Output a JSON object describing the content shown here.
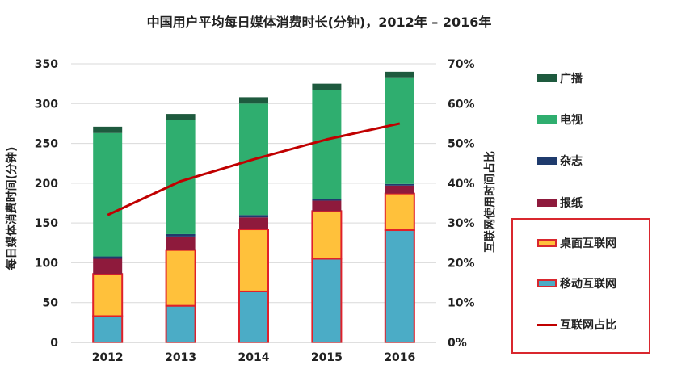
{
  "chart_data": {
    "type": "bar",
    "title": "中国用户平均每日媒体消费时长(分钟)，2012年  –  2016年",
    "ylabel": "每日媒体消费时间(分钟)",
    "y2label": "互联网使用时间占比",
    "categories": [
      "2012",
      "2013",
      "2014",
      "2015",
      "2016"
    ],
    "ylim": [
      0,
      350
    ],
    "yticks": [
      "0",
      "50",
      "100",
      "150",
      "200",
      "250",
      "300",
      "350"
    ],
    "y2lim": [
      0,
      70
    ],
    "y2ticks": [
      "0%",
      "10%",
      "20%",
      "30%",
      "40%",
      "50%",
      "60%",
      "70%"
    ],
    "stacked": true,
    "series": [
      {
        "name": "移动互联网",
        "color": "#4bacc6",
        "values": [
          33,
          46,
          64,
          105,
          141
        ],
        "bordered": true
      },
      {
        "name": "桌面互联网",
        "color": "#ffc13b",
        "values": [
          53,
          70,
          78,
          60,
          46
        ],
        "bordered": true
      },
      {
        "name": "报纸",
        "color": "#8e1a3c",
        "values": [
          19,
          17,
          15,
          13,
          10
        ]
      },
      {
        "name": "杂志",
        "color": "#1f3b6d",
        "values": [
          3,
          3,
          3,
          2,
          2
        ]
      },
      {
        "name": "电视",
        "color": "#2fae6f",
        "values": [
          155,
          144,
          140,
          137,
          134
        ]
      },
      {
        "name": "广播",
        "color": "#1e5a3e",
        "values": [
          8,
          7,
          8,
          8,
          7
        ]
      }
    ],
    "line_series": {
      "name": "互联网占比",
      "color": "#c00000",
      "axis": "right",
      "values": [
        32,
        40.5,
        46,
        51,
        55
      ]
    },
    "grid": true,
    "legend": "right"
  }
}
